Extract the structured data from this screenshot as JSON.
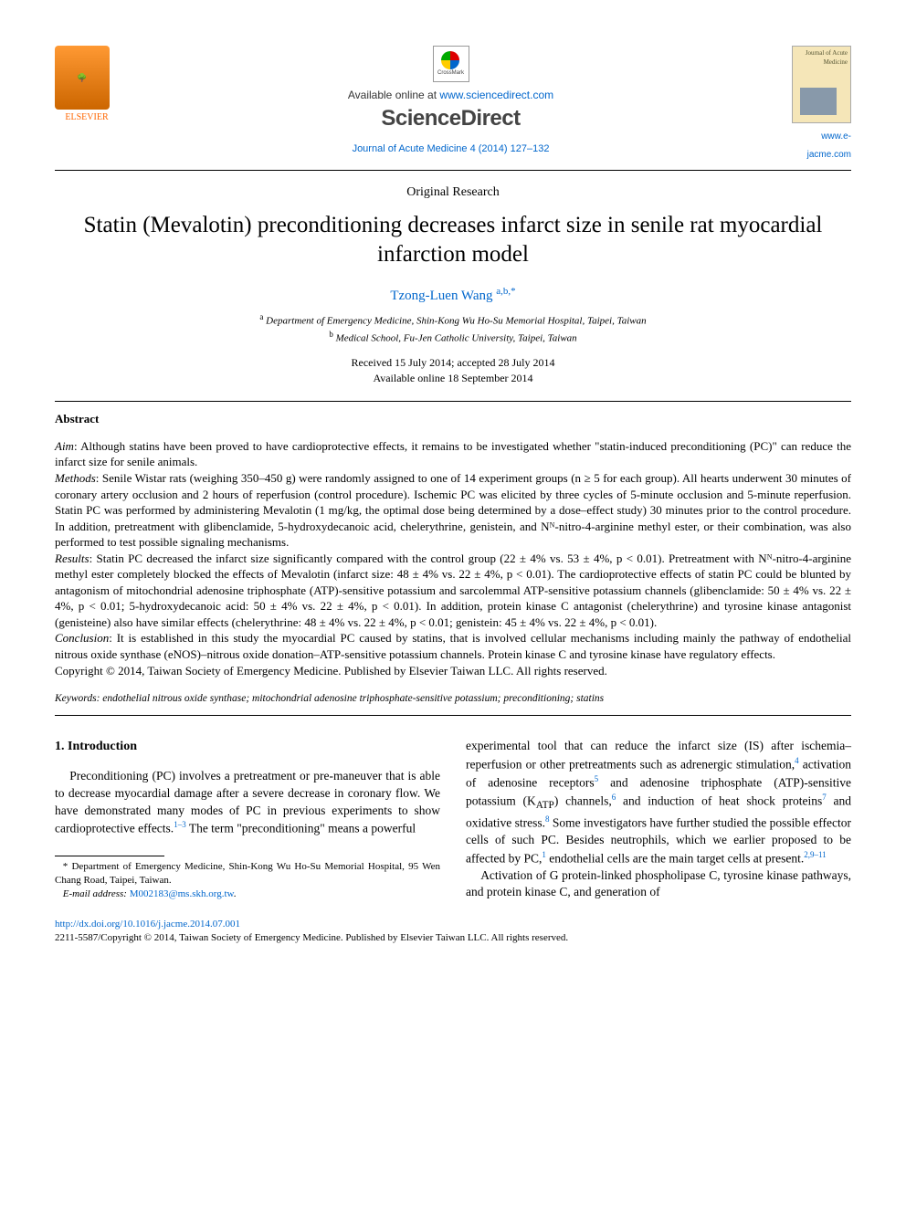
{
  "header": {
    "publisher_logo_text": "ELSEVIER",
    "crossmark_text": "CrossMark",
    "available_text_prefix": "Available online at ",
    "available_url": "www.sciencedirect.com",
    "sciencedirect_logo": "ScienceDirect",
    "journal_reference": "Journal of Acute Medicine 4 (2014) 127–132",
    "cover_title": "Journal of Acute Medicine",
    "cover_link": "www.e-jacme.com"
  },
  "article": {
    "type": "Original Research",
    "title": "Statin (Mevalotin) preconditioning decreases infarct size in senile rat myocardial infarction model",
    "author_name": "Tzong-Luen Wang",
    "author_marks": "a,b,*",
    "affiliation_a_mark": "a",
    "affiliation_a": "Department of Emergency Medicine, Shin-Kong Wu Ho-Su Memorial Hospital, Taipei, Taiwan",
    "affiliation_b_mark": "b",
    "affiliation_b": "Medical School, Fu-Jen Catholic University, Taipei, Taiwan",
    "received": "Received 15 July 2014; accepted 28 July 2014",
    "available_online": "Available online 18 September 2014"
  },
  "abstract": {
    "heading": "Abstract",
    "aim_label": "Aim",
    "aim_text": ": Although statins have been proved to have cardioprotective effects, it remains to be investigated whether \"statin-induced preconditioning (PC)\" can reduce the infarct size for senile animals.",
    "methods_label": "Methods",
    "methods_text": ": Senile Wistar rats (weighing 350–450 g) were randomly assigned to one of 14 experiment groups (n ≥ 5 for each group). All hearts underwent 30 minutes of coronary artery occlusion and 2 hours of reperfusion (control procedure). Ischemic PC was elicited by three cycles of 5-minute occlusion and 5-minute reperfusion. Statin PC was performed by administering Mevalotin (1 mg/kg, the optimal dose being determined by a dose–effect study) 30 minutes prior to the control procedure. In addition, pretreatment with glibenclamide, 5-hydroxydecanoic acid, chelerythrine, genistein, and Nᴺ-nitro-4-arginine methyl ester, or their combination, was also performed to test possible signaling mechanisms.",
    "results_label": "Results",
    "results_text": ": Statin PC decreased the infarct size significantly compared with the control group (22 ± 4% vs. 53 ± 4%, p < 0.01). Pretreatment with Nᴺ-nitro-4-arginine methyl ester completely blocked the effects of Mevalotin (infarct size: 48 ± 4% vs. 22 ± 4%, p < 0.01). The cardioprotective effects of statin PC could be blunted by antagonism of mitochondrial adenosine triphosphate (ATP)-sensitive potassium and sarcolemmal ATP-sensitive potassium channels (glibenclamide: 50 ± 4% vs. 22 ± 4%, p < 0.01; 5-hydroxydecanoic acid: 50 ± 4% vs. 22 ± 4%, p < 0.01). In addition, protein kinase C antagonist (chelerythrine) and tyrosine kinase antagonist (genisteine) also have similar effects (chelerythrine: 48 ± 4% vs. 22 ± 4%, p < 0.01; genistein: 45 ± 4% vs. 22 ± 4%, p < 0.01).",
    "conclusion_label": "Conclusion",
    "conclusion_text": ": It is established in this study the myocardial PC caused by statins, that is involved cellular mechanisms including mainly the pathway of endothelial nitrous oxide synthase (eNOS)–nitrous oxide donation–ATP-sensitive potassium channels. Protein kinase C and tyrosine kinase have regulatory effects.",
    "copyright": "Copyright © 2014, Taiwan Society of Emergency Medicine. Published by Elsevier Taiwan LLC. All rights reserved."
  },
  "keywords": {
    "label": "Keywords:",
    "text": " endothelial nitrous oxide synthase; mitochondrial adenosine triphosphate-sensitive potassium; preconditioning; statins"
  },
  "body": {
    "section_1_heading": "1. Introduction",
    "col1_p1_a": "Preconditioning (PC) involves a pretreatment or pre-maneuver that is able to decrease myocardial damage after a severe decrease in coronary flow. We have demonstrated many modes of PC in previous experiments to show cardioprotective effects.",
    "col1_ref1": "1–3",
    "col1_p1_b": " The term \"preconditioning\" means a powerful",
    "col2_p1_a": "experimental tool that can reduce the infarct size (IS) after ischemia–reperfusion or other pretreatments such as adrenergic stimulation,",
    "col2_ref4": "4",
    "col2_p1_b": " activation of adenosine receptors",
    "col2_ref5": "5",
    "col2_p1_c": " and adenosine triphosphate (ATP)-sensitive potassium (K",
    "col2_sub_atp": "ATP",
    "col2_p1_d": ") channels,",
    "col2_ref6": "6",
    "col2_p1_e": " and induction of heat shock proteins",
    "col2_ref7": "7",
    "col2_p1_f": " and oxidative stress.",
    "col2_ref8": "8",
    "col2_p1_g": " Some investigators have further studied the possible effector cells of such PC. Besides neutrophils, which we earlier proposed to be affected by PC,",
    "col2_ref1b": "1",
    "col2_p1_h": " endothelial cells are the main target cells at present.",
    "col2_ref2911": "2,9–11",
    "col2_p2": "Activation of G protein-linked phospholipase C, tyrosine kinase pathways, and protein kinase C, and generation of"
  },
  "footnotes": {
    "corr_label": "*",
    "corr_text": " Department of Emergency Medicine, Shin-Kong Wu Ho-Su Memorial Hospital, 95 Wen Chang Road, Taipei, Taiwan.",
    "email_label": "E-mail address:",
    "email": " M002183@ms.skh.org.tw"
  },
  "footer": {
    "doi": "http://dx.doi.org/10.1016/j.jacme.2014.07.001",
    "issn_line": "2211-5587/Copyright © 2014, Taiwan Society of Emergency Medicine. Published by Elsevier Taiwan LLC. All rights reserved."
  },
  "colors": {
    "link": "#0066cc",
    "text": "#000000",
    "elsevier_orange": "#ff6600"
  }
}
